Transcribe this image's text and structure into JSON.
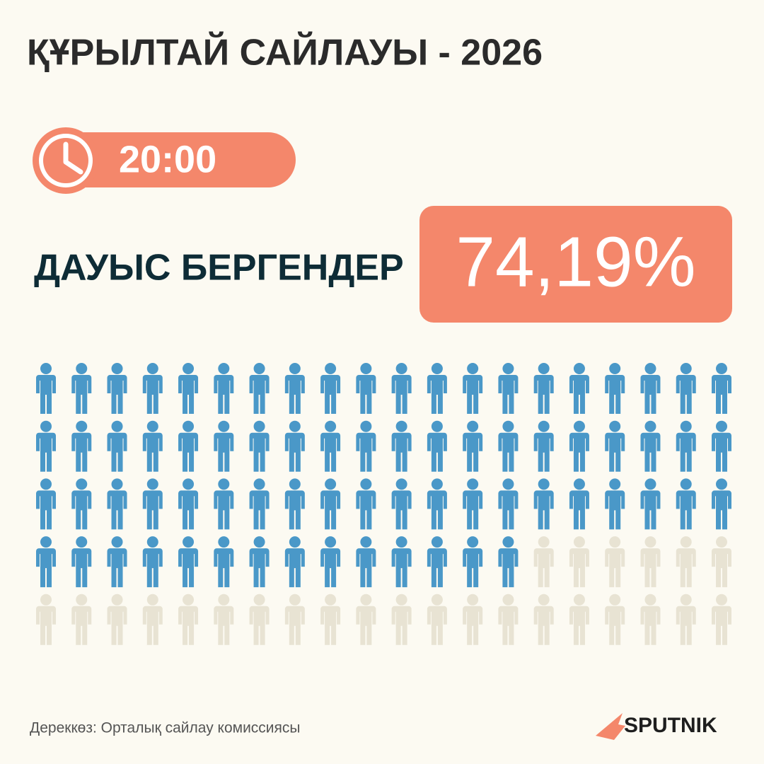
{
  "chart_data": {
    "type": "pictograph",
    "title": "ҚҰРЫЛТАЙ САЙЛАУЫ - 2026",
    "time": "20:00",
    "categories": [
      "ДАУЫС БЕРГЕНДЕР"
    ],
    "values": [
      74.19
    ],
    "value_labels": [
      "74,19%"
    ],
    "ylim": [
      0,
      100
    ],
    "color": "#4a98c8",
    "rest_color": "#e8e3d3",
    "accent_color": "#f4876b",
    "source": "Дереккөз: Орталық сайлау комиссиясы",
    "brand": "SPUTNIK"
  }
}
